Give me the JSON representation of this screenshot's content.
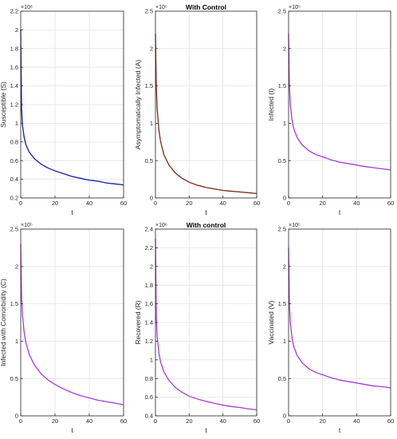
{
  "figure": {
    "colors": {
      "susceptible": "#1a1aa8",
      "asymptomatic": "#7a2a18",
      "infected": "#a93ad8",
      "comorbidity": "#a93ad8",
      "recovered": "#a93ad8",
      "vaccinated": "#a93ad8",
      "axes": "#262626",
      "grid": "#e3e3e3"
    }
  },
  "chart_data": [
    {
      "type": "line",
      "title": "",
      "xlabel": "t",
      "ylabel": "Susceptible (S)",
      "multiplier": "×10⁸",
      "xlim": [
        0,
        60
      ],
      "ylim": [
        0.2,
        2.2
      ],
      "xticks": [
        0,
        20,
        40,
        60
      ],
      "xtick_labels": [
        "0",
        "20",
        "40",
        "60"
      ],
      "yticks": [
        0.2,
        0.4,
        0.6,
        0.8,
        1.0,
        1.2,
        1.4,
        1.6,
        1.8,
        2.0,
        2.2
      ],
      "ytick_labels": [
        "0.2",
        "0.4",
        "0.6",
        "0.8",
        "1",
        "1.2",
        "1.4",
        "1.6",
        "1.8",
        "2",
        "2.2"
      ],
      "grid": true,
      "color_key": "susceptible",
      "x": [
        0,
        0.5,
        1,
        2,
        3,
        5,
        8,
        12,
        16,
        20,
        25,
        30,
        35,
        40,
        45,
        50,
        55,
        60
      ],
      "y": [
        2.0,
        1.15,
        0.98,
        0.85,
        0.77,
        0.69,
        0.62,
        0.56,
        0.52,
        0.49,
        0.46,
        0.43,
        0.41,
        0.39,
        0.38,
        0.36,
        0.35,
        0.34
      ]
    },
    {
      "type": "line",
      "title": "With Control",
      "xlabel": "t",
      "ylabel": "Asymptomatically Infected (A)",
      "multiplier": "×10⁵",
      "xlim": [
        0,
        60
      ],
      "ylim": [
        0,
        2.5
      ],
      "xticks": [
        0,
        20,
        40,
        60
      ],
      "xtick_labels": [
        "0",
        "20",
        "40",
        "60"
      ],
      "yticks": [
        0,
        0.5,
        1.0,
        1.5,
        2.0,
        2.5
      ],
      "ytick_labels": [
        "0",
        "0.5",
        "1",
        "1.5",
        "2",
        "2.5"
      ],
      "grid": true,
      "color_key": "asymptomatic",
      "x": [
        0,
        0.5,
        1,
        2,
        3,
        5,
        8,
        12,
        16,
        20,
        25,
        30,
        35,
        40,
        45,
        50,
        55,
        60
      ],
      "y": [
        2.2,
        1.5,
        1.2,
        0.92,
        0.76,
        0.58,
        0.44,
        0.33,
        0.26,
        0.21,
        0.17,
        0.14,
        0.12,
        0.1,
        0.09,
        0.08,
        0.07,
        0.06
      ]
    },
    {
      "type": "line",
      "title": "",
      "xlabel": "t",
      "ylabel": "Infected (I)",
      "multiplier": "×10⁵",
      "xlim": [
        0,
        60
      ],
      "ylim": [
        0,
        2.5
      ],
      "xticks": [
        0,
        20,
        40,
        60
      ],
      "xtick_labels": [
        "0",
        "20",
        "40",
        "60"
      ],
      "yticks": [
        0,
        0.5,
        1.0,
        1.5,
        2.0,
        2.5
      ],
      "ytick_labels": [
        "0",
        "0.5",
        "1",
        "1.5",
        "2",
        "2.5"
      ],
      "grid": true,
      "color_key": "infected",
      "x": [
        0,
        0.5,
        1,
        2,
        3,
        5,
        8,
        12,
        16,
        20,
        25,
        30,
        35,
        40,
        45,
        50,
        55,
        60
      ],
      "y": [
        2.2,
        1.5,
        1.25,
        1.05,
        0.93,
        0.81,
        0.71,
        0.63,
        0.58,
        0.55,
        0.51,
        0.48,
        0.46,
        0.44,
        0.42,
        0.405,
        0.39,
        0.375
      ]
    },
    {
      "type": "line",
      "title": "",
      "xlabel": "t",
      "ylabel": "Infected with Comorbidity (C)",
      "multiplier": "×10⁵",
      "xlim": [
        0,
        60
      ],
      "ylim": [
        0,
        2.5
      ],
      "xticks": [
        0,
        20,
        40,
        60
      ],
      "xtick_labels": [
        "0",
        "20",
        "40",
        "60"
      ],
      "yticks": [
        0,
        0.5,
        1.0,
        1.5,
        2.0,
        2.5
      ],
      "ytick_labels": [
        "0",
        "0.5",
        "1",
        "1.5",
        "2",
        "2.5"
      ],
      "grid": true,
      "color_key": "comorbidity",
      "x": [
        0,
        0.5,
        1,
        2,
        3,
        5,
        8,
        12,
        16,
        20,
        25,
        30,
        35,
        40,
        45,
        50,
        55,
        60
      ],
      "y": [
        2.3,
        1.6,
        1.35,
        1.12,
        0.98,
        0.82,
        0.68,
        0.56,
        0.48,
        0.42,
        0.36,
        0.31,
        0.27,
        0.24,
        0.21,
        0.19,
        0.17,
        0.15
      ]
    },
    {
      "type": "line",
      "title": "With control",
      "xlabel": "t",
      "ylabel": "Recovered (R)",
      "multiplier": "×10⁶",
      "xlim": [
        0,
        60
      ],
      "ylim": [
        0.4,
        2.4
      ],
      "xticks": [
        0,
        20,
        40,
        60
      ],
      "xtick_labels": [
        "0",
        "20",
        "40",
        "60"
      ],
      "yticks": [
        0.4,
        0.6,
        0.8,
        1.0,
        1.2,
        1.4,
        1.6,
        1.8,
        2.0,
        2.2,
        2.4
      ],
      "ytick_labels": [
        "0.4",
        "0.6",
        "0.8",
        "1",
        "1.2",
        "1.4",
        "1.6",
        "1.8",
        "2",
        "2.2",
        "2.4"
      ],
      "grid": true,
      "color_key": "recovered",
      "x": [
        0,
        0.5,
        1,
        2,
        3,
        5,
        8,
        12,
        16,
        20,
        25,
        30,
        35,
        40,
        45,
        50,
        55,
        60
      ],
      "y": [
        2.3,
        1.45,
        1.25,
        1.08,
        0.98,
        0.87,
        0.78,
        0.7,
        0.65,
        0.61,
        0.58,
        0.555,
        0.535,
        0.515,
        0.5,
        0.49,
        0.475,
        0.465
      ]
    },
    {
      "type": "line",
      "title": "",
      "xlabel": "t",
      "ylabel": "Vaccinated (V)",
      "multiplier": "×10⁵",
      "xlim": [
        0,
        60
      ],
      "ylim": [
        0,
        2.5
      ],
      "xticks": [
        0,
        20,
        40,
        60
      ],
      "xtick_labels": [
        "0",
        "20",
        "40",
        "60"
      ],
      "yticks": [
        0,
        0.5,
        1.0,
        1.5,
        2.0,
        2.5
      ],
      "ytick_labels": [
        "0",
        "0.5",
        "1",
        "1.5",
        "2",
        "2.5"
      ],
      "grid": true,
      "color_key": "vaccinated",
      "x": [
        0,
        0.5,
        1,
        2,
        3,
        5,
        8,
        12,
        16,
        20,
        25,
        30,
        35,
        40,
        45,
        50,
        55,
        60
      ],
      "y": [
        2.25,
        1.5,
        1.25,
        1.05,
        0.93,
        0.81,
        0.71,
        0.63,
        0.58,
        0.55,
        0.51,
        0.48,
        0.46,
        0.44,
        0.42,
        0.4,
        0.39,
        0.375
      ]
    }
  ]
}
